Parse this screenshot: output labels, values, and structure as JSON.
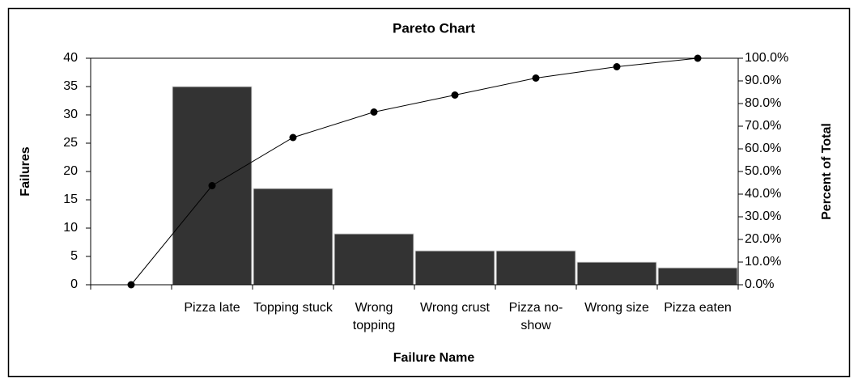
{
  "chart_data": {
    "type": "pareto",
    "title": "Pareto Chart",
    "x_label": "Failure Name",
    "y_label": "Failures",
    "y2_label": "Percent of Total",
    "categories": [
      null,
      "Pizza late",
      "Topping stuck",
      "Wrong topping",
      "Wrong crust",
      "Pizza no-show",
      "Wrong size",
      "Pizza eaten"
    ],
    "series": [
      {
        "name": "Failures",
        "type": "bar",
        "color": "#333333",
        "values": [
          null,
          35,
          17,
          9,
          6,
          6,
          4,
          3
        ]
      },
      {
        "name": "Percent of Total",
        "type": "line",
        "axis": "y2",
        "color": "#000000",
        "values": [
          0,
          43.75,
          65,
          76.25,
          83.75,
          91.25,
          96.25,
          100
        ]
      }
    ],
    "ylim": [
      0,
      40
    ],
    "yticks": [
      0,
      5,
      10,
      15,
      20,
      25,
      30,
      35,
      40
    ],
    "y2lim": [
      0,
      100
    ],
    "y2ticks": [
      {
        "value": 0,
        "label": "0.0%"
      },
      {
        "value": 10,
        "label": "10.0%"
      },
      {
        "value": 20,
        "label": "20.0%"
      },
      {
        "value": 30,
        "label": "30.0%"
      },
      {
        "value": 40,
        "label": "40.0%"
      },
      {
        "value": 50,
        "label": "50.0%"
      },
      {
        "value": 60,
        "label": "60.0%"
      },
      {
        "value": 70,
        "label": "70.0%"
      },
      {
        "value": 80,
        "label": "80.0%"
      },
      {
        "value": 90,
        "label": "90.0%"
      },
      {
        "value": 100,
        "label": "100.0%"
      }
    ],
    "grid": false
  }
}
